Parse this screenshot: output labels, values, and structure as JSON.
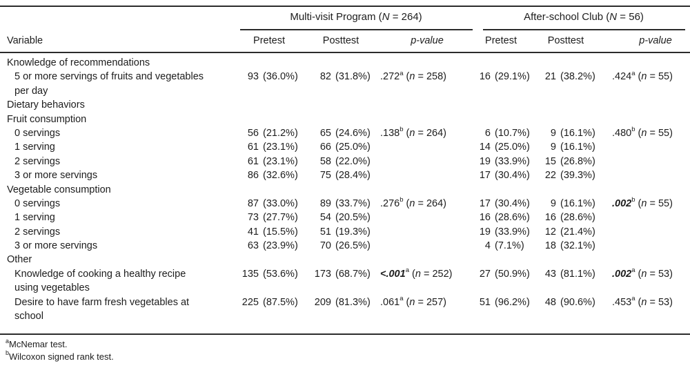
{
  "table": {
    "groups": [
      {
        "label_pre": "Multi-visit Program (",
        "n_var": "N",
        "label_post": " = 264)"
      },
      {
        "label_pre": "After-school Club (",
        "n_var": "N",
        "label_post": " = 56)"
      }
    ],
    "columns": {
      "variable": "Variable",
      "pretest": "Pretest",
      "posttest": "Posttest",
      "pvalue": "p-value"
    },
    "rows": [
      {
        "kind": "section",
        "text": "Knowledge of recommendations"
      },
      {
        "kind": "item",
        "lines": [
          "5 or more servings of fruits and vegetables",
          "per day"
        ],
        "mvp_pre": [
          "93",
          "(36.0%)"
        ],
        "mvp_post": [
          "82",
          "(31.8%)"
        ],
        "mvp_p": {
          "val": ".272",
          "sup": "a",
          "note_pre": "(",
          "note_var": "n",
          "note_post": " = 258)",
          "sig": false
        },
        "club_pre": [
          "16",
          "(29.1%)"
        ],
        "club_post": [
          "21",
          "(38.2%)"
        ],
        "club_p": {
          "val": ".424",
          "sup": "a",
          "note_pre": "(",
          "note_var": "n",
          "note_post": " = 55)",
          "sig": false
        }
      },
      {
        "kind": "section",
        "text": "Dietary behaviors"
      },
      {
        "kind": "section",
        "text": "Fruit consumption"
      },
      {
        "kind": "item",
        "lines": [
          "0 servings"
        ],
        "mvp_pre": [
          "56",
          "(21.2%)"
        ],
        "mvp_post": [
          "65",
          "(24.6%)"
        ],
        "mvp_p": {
          "val": ".138",
          "sup": "b",
          "note_pre": "(",
          "note_var": "n",
          "note_post": " = 264)",
          "sig": false
        },
        "club_pre": [
          "6",
          "(10.7%)"
        ],
        "club_post": [
          "9",
          "(16.1%)"
        ],
        "club_p": {
          "val": ".480",
          "sup": "b",
          "note_pre": "(",
          "note_var": "n",
          "note_post": " = 55)",
          "sig": false
        }
      },
      {
        "kind": "item",
        "lines": [
          "1 serving"
        ],
        "mvp_pre": [
          "61",
          "(23.1%)"
        ],
        "mvp_post": [
          "66",
          "(25.0%)"
        ],
        "club_pre": [
          "14",
          "(25.0%)"
        ],
        "club_post": [
          "9",
          "(16.1%)"
        ]
      },
      {
        "kind": "item",
        "lines": [
          "2 servings"
        ],
        "mvp_pre": [
          "61",
          "(23.1%)"
        ],
        "mvp_post": [
          "58",
          "(22.0%)"
        ],
        "club_pre": [
          "19",
          "(33.9%)"
        ],
        "club_post": [
          "15",
          "(26.8%)"
        ]
      },
      {
        "kind": "item",
        "lines": [
          "3 or more servings"
        ],
        "mvp_pre": [
          "86",
          "(32.6%)"
        ],
        "mvp_post": [
          "75",
          "(28.4%)"
        ],
        "club_pre": [
          "17",
          "(30.4%)"
        ],
        "club_post": [
          "22",
          "(39.3%)"
        ]
      },
      {
        "kind": "section",
        "text": "Vegetable consumption"
      },
      {
        "kind": "item",
        "lines": [
          "0 servings"
        ],
        "mvp_pre": [
          "87",
          "(33.0%)"
        ],
        "mvp_post": [
          "89",
          "(33.7%)"
        ],
        "mvp_p": {
          "val": ".276",
          "sup": "b",
          "note_pre": "(",
          "note_var": "n",
          "note_post": " = 264)",
          "sig": false
        },
        "club_pre": [
          "17",
          "(30.4%)"
        ],
        "club_post": [
          "9",
          "(16.1%)"
        ],
        "club_p": {
          "val": ".002",
          "sup": "b",
          "note_pre": "(",
          "note_var": "n",
          "note_post": " = 55)",
          "sig": true
        }
      },
      {
        "kind": "item",
        "lines": [
          "1 serving"
        ],
        "mvp_pre": [
          "73",
          "(27.7%)"
        ],
        "mvp_post": [
          "54",
          "(20.5%)"
        ],
        "club_pre": [
          "16",
          "(28.6%)"
        ],
        "club_post": [
          "16",
          "(28.6%)"
        ]
      },
      {
        "kind": "item",
        "lines": [
          "2 servings"
        ],
        "mvp_pre": [
          "41",
          "(15.5%)"
        ],
        "mvp_post": [
          "51",
          "(19.3%)"
        ],
        "club_pre": [
          "19",
          "(33.9%)"
        ],
        "club_post": [
          "12",
          "(21.4%)"
        ]
      },
      {
        "kind": "item",
        "lines": [
          "3 or more servings"
        ],
        "mvp_pre": [
          "63",
          "(23.9%)"
        ],
        "mvp_post": [
          "70",
          "(26.5%)"
        ],
        "club_pre": [
          "4",
          "(7.1%)"
        ],
        "club_post": [
          "18",
          "(32.1%)"
        ]
      },
      {
        "kind": "section",
        "text": "Other"
      },
      {
        "kind": "item",
        "lines": [
          "Knowledge of cooking a healthy recipe",
          "using vegetables"
        ],
        "mvp_pre": [
          "135",
          "(53.6%)"
        ],
        "mvp_post": [
          "173",
          "(68.7%)"
        ],
        "mvp_p": {
          "val": "<.001",
          "sup": "a",
          "note_pre": "(",
          "note_var": "n",
          "note_post": " = 252)",
          "sig": true
        },
        "club_pre": [
          "27",
          "(50.9%)"
        ],
        "club_post": [
          "43",
          "(81.1%)"
        ],
        "club_p": {
          "val": ".002",
          "sup": "a",
          "note_pre": "(",
          "note_var": "n",
          "note_post": " = 53)",
          "sig": true
        }
      },
      {
        "kind": "item",
        "lines": [
          "Desire to have farm fresh vegetables at",
          "school"
        ],
        "mvp_pre": [
          "225",
          "(87.5%)"
        ],
        "mvp_post": [
          "209",
          "(81.3%)"
        ],
        "mvp_p": {
          "val": ".061",
          "sup": "a",
          "note_pre": "(",
          "note_var": "n",
          "note_post": " = 257)",
          "sig": false
        },
        "club_pre": [
          "51",
          "(96.2%)"
        ],
        "club_post": [
          "48",
          "(90.6%)"
        ],
        "club_p": {
          "val": ".453",
          "sup": "a",
          "note_pre": "(",
          "note_var": "n",
          "note_post": " = 53)",
          "sig": false
        }
      }
    ],
    "footnotes": [
      {
        "sup": "a",
        "text": "McNemar test."
      },
      {
        "sup": "b",
        "text": "Wilcoxon signed rank test."
      }
    ]
  }
}
